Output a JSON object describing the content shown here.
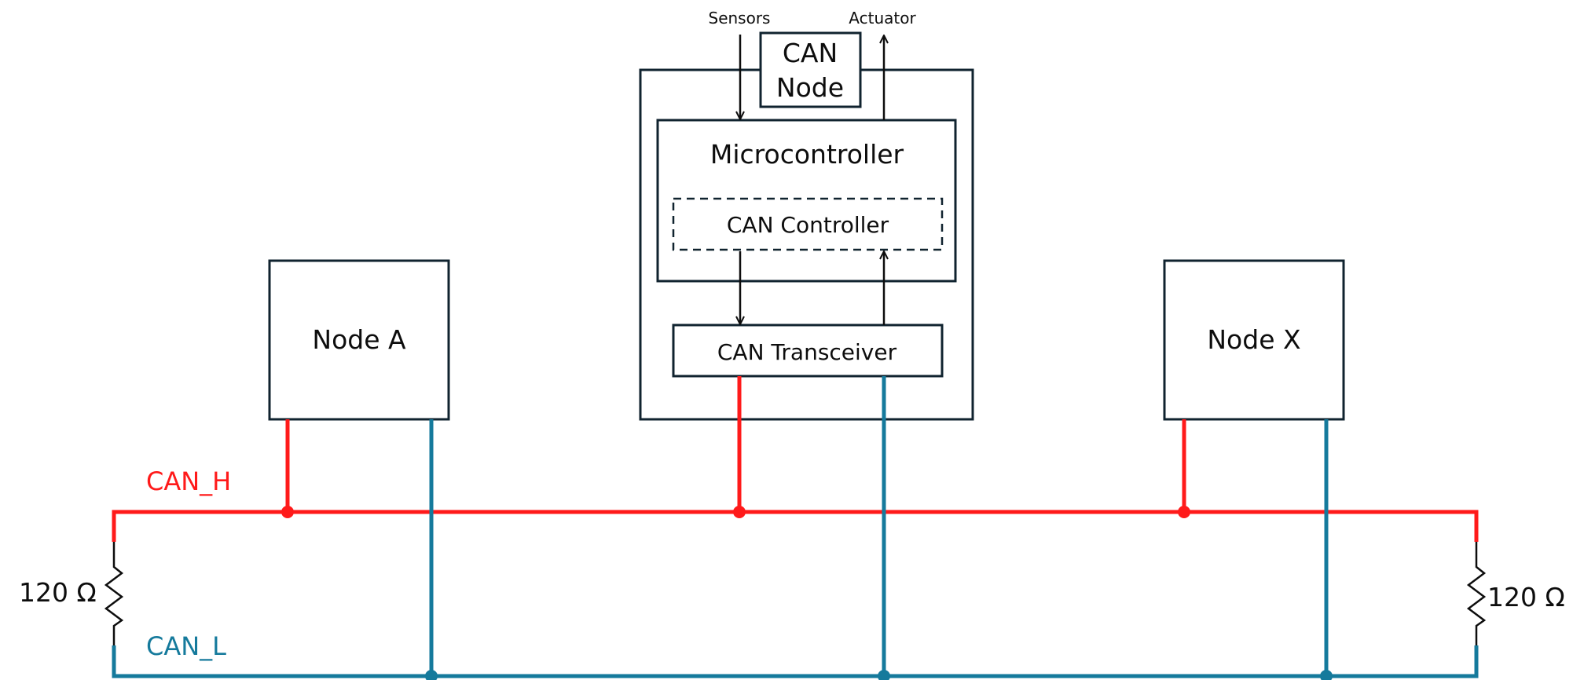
{
  "labels": {
    "sensors": "Sensors",
    "actuator": "Actuator",
    "can_node_line1": "CAN",
    "can_node_line2": "Node",
    "microcontroller": "Microcontroller",
    "can_controller": "CAN Controller",
    "can_transceiver": "CAN Transceiver",
    "node_a": "Node A",
    "node_x": "Node X",
    "can_h": "CAN_H",
    "can_l": "CAN_L",
    "resistor_left": "120 Ω",
    "resistor_right": "120 Ω"
  },
  "colors": {
    "can_h": "#ff1a1a",
    "can_l": "#157a9c",
    "box_stroke": "#10232f",
    "text": "#0d0d0d"
  }
}
